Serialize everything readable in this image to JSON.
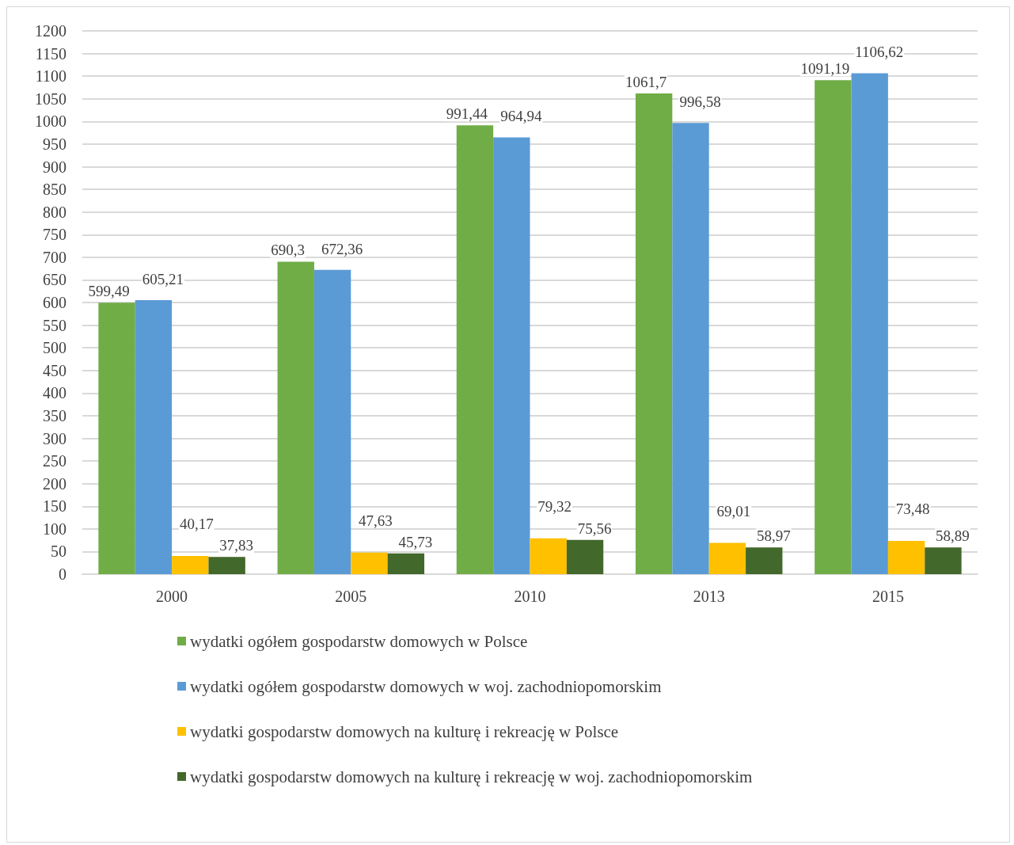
{
  "chart_data": {
    "type": "bar",
    "categories": [
      "2000",
      "2005",
      "2010",
      "2013",
      "2015"
    ],
    "series": [
      {
        "name": "wydatki ogółem gospodarstw domowych w Polsce",
        "color": "#70ad47",
        "values": [
          599.49,
          690.3,
          991.44,
          1061.7,
          1091.19
        ],
        "value_labels": [
          "599,49",
          "690,3",
          "991,44",
          "1061,7",
          "1091,19"
        ]
      },
      {
        "name": "wydatki ogółem gospodarstw domowych w woj. zachodniopomorskim",
        "color": "#5b9bd5",
        "values": [
          605.21,
          672.36,
          964.94,
          996.58,
          1106.62
        ],
        "value_labels": [
          "605,21",
          "672,36",
          "964,94",
          "996,58",
          "1106,62"
        ]
      },
      {
        "name": "wydatki gospodarstw domowych na kulturę i rekreację w Polsce",
        "color": "#ffc000",
        "values": [
          40.17,
          47.63,
          79.32,
          69.01,
          73.48
        ],
        "value_labels": [
          "40,17",
          "47,63",
          "79,32",
          "69,01",
          "73,48"
        ]
      },
      {
        "name": "wydatki gospodarstw domowych na kulturę i rekreację w woj. zachodniopomorskim",
        "color": "#43682b",
        "values": [
          37.83,
          45.73,
          75.56,
          58.97,
          58.89
        ],
        "value_labels": [
          "37,83",
          "45,73",
          "75,56",
          "58,97",
          "58,89"
        ]
      }
    ],
    "ylim": [
      0,
      1200
    ],
    "yticks": [
      0,
      50,
      100,
      150,
      200,
      250,
      300,
      350,
      400,
      450,
      500,
      550,
      600,
      650,
      700,
      750,
      800,
      850,
      900,
      950,
      1000,
      1050,
      1100,
      1150,
      1200
    ],
    "grid": "y",
    "legend": "bottom"
  }
}
